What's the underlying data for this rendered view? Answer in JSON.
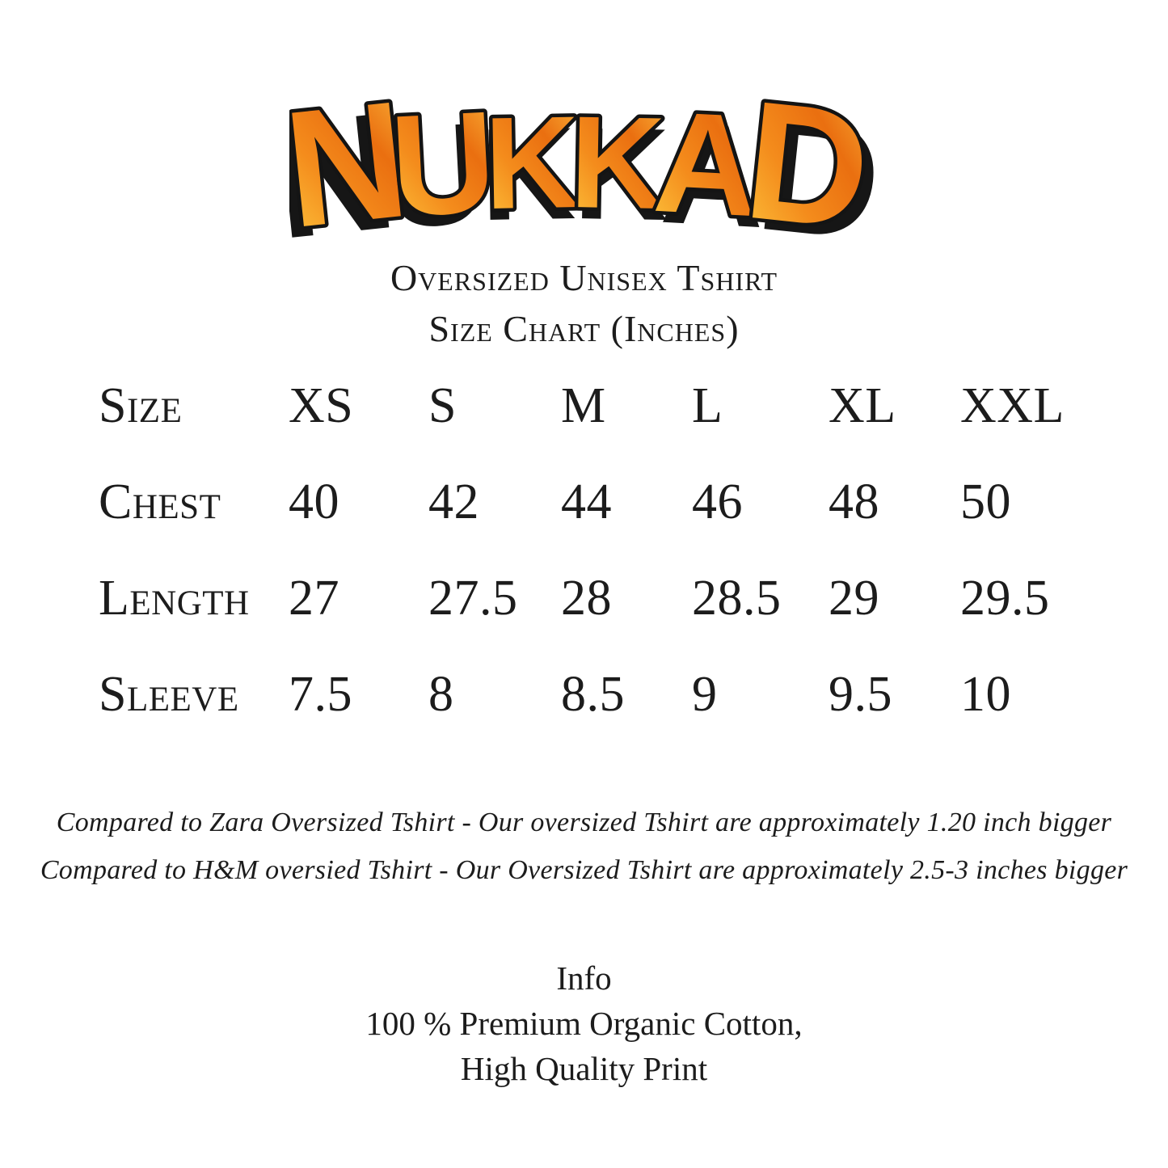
{
  "logo": {
    "text": "NUKKAD",
    "letters": [
      "N",
      "U",
      "K",
      "K",
      "A",
      "D"
    ],
    "gradient": [
      "#fdc93f",
      "#f48c1c",
      "#ea6f10",
      "#f9ae35"
    ],
    "outline": "#141414",
    "shadow": "#161616"
  },
  "header": {
    "line1": "Oversized Unisex Tshirt",
    "line2": "Size Chart (Inches)"
  },
  "chart_data": {
    "type": "table",
    "title": "Size Chart (Inches)",
    "unit": "inches",
    "columns": [
      "Size",
      "XS",
      "S",
      "M",
      "L",
      "XL",
      "XXL"
    ],
    "rows": [
      {
        "label": "Chest",
        "values": [
          "40",
          "42",
          "44",
          "46",
          "48",
          "50"
        ]
      },
      {
        "label": "Length",
        "values": [
          "27",
          "27.5",
          "28",
          "28.5",
          "29",
          "29.5"
        ]
      },
      {
        "label": "Sleeve",
        "values": [
          "7.5",
          "8",
          "8.5",
          "9",
          "9.5",
          "10"
        ]
      }
    ]
  },
  "notes": {
    "line1": "Compared to Zara Oversized Tshirt - Our oversized Tshirt are approximately 1.20 inch bigger",
    "line2": "Compared to H&M oversied Tshirt - Our Oversized Tshirt are approximately 2.5-3 inches bigger"
  },
  "info": {
    "heading": "Info",
    "line1": "100 % Premium Organic Cotton,",
    "line2": "High Quality Print"
  },
  "colors": {
    "text": "#1c1c1c",
    "background": "#ffffff"
  }
}
